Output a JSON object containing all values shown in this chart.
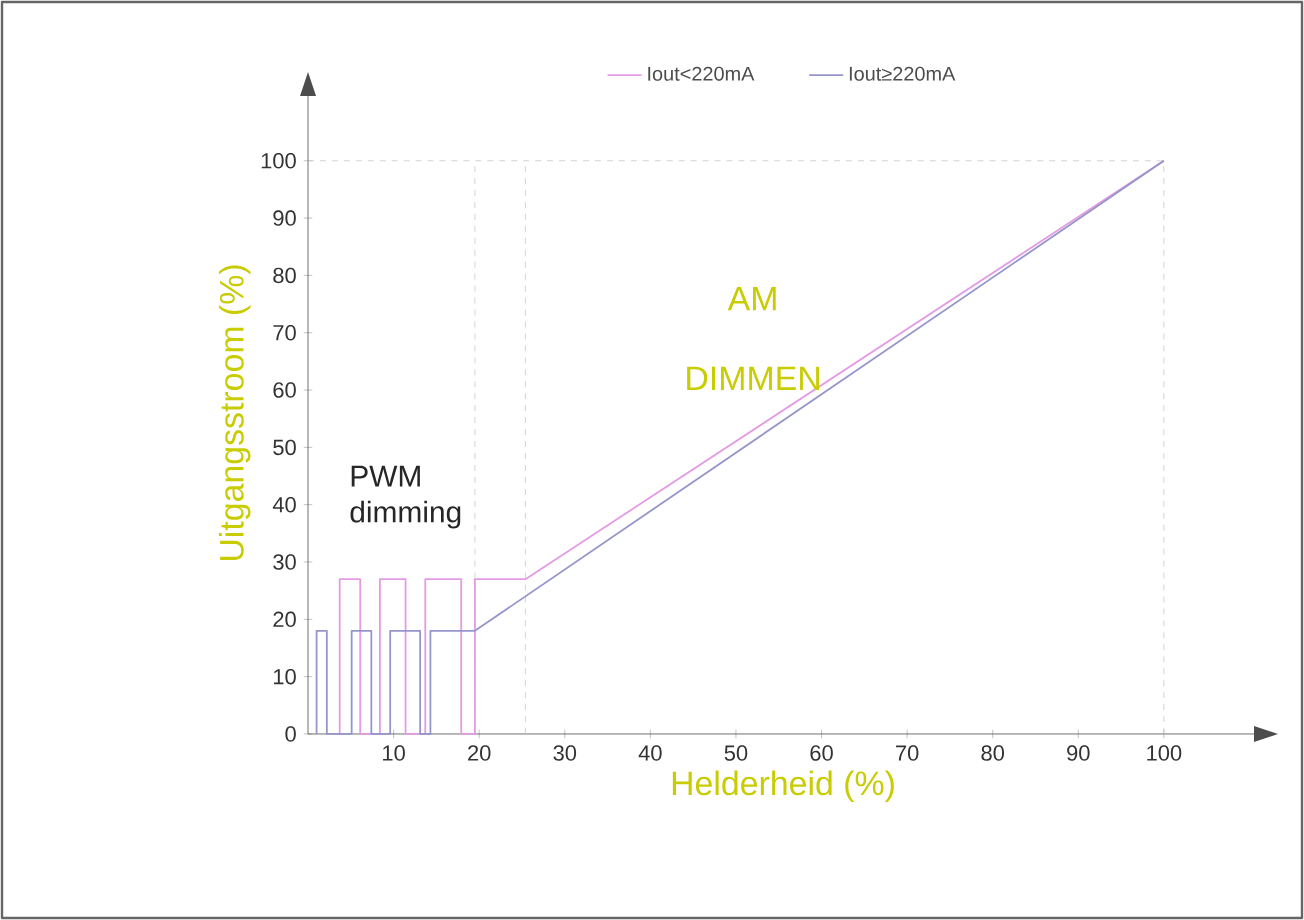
{
  "chart_data": {
    "type": "line",
    "xlabel": "Helderheid (%)",
    "ylabel": "Uitgangsstroom (%)",
    "annotations": [
      "PWM dimming",
      "AM DIMMEN"
    ],
    "xlim": [
      0,
      111
    ],
    "ylim": [
      0,
      112
    ],
    "xticks": [
      10,
      20,
      30,
      40,
      50,
      60,
      70,
      80,
      90,
      100
    ],
    "yticks": [
      0,
      10,
      20,
      30,
      40,
      50,
      60,
      70,
      80,
      90,
      100
    ],
    "legend": "top",
    "grid": false,
    "marker": "none",
    "line_style": "solid",
    "ref_lines": [
      {
        "axis": "x",
        "value": 19.5,
        "color": "#c8c8c8",
        "line_style": "dashed"
      },
      {
        "axis": "x",
        "value": 25.4,
        "color": "#c8c8c8",
        "line_style": "dashed"
      },
      {
        "axis": "x",
        "value": 100,
        "color": "#c8c8c8",
        "line_style": "dashed"
      },
      {
        "axis": "y",
        "value": 100,
        "color": "#c8c8c8",
        "line_style": "dashed"
      }
    ],
    "series": [
      {
        "name": "Iout<220mA",
        "color": "#e49be4",
        "x": [
          3.7,
          3.7,
          6.1,
          6.1,
          8.4,
          8.4,
          11.4,
          11.4,
          13.7,
          13.7,
          17.9,
          17.9,
          19.5,
          19.5,
          25.4,
          100
        ],
        "values": [
          0,
          27,
          27,
          0,
          0,
          27,
          27,
          0,
          0,
          27,
          27,
          0,
          0,
          27,
          27,
          100
        ]
      },
      {
        "name": "Iout≥220mA",
        "color": "#9595cc",
        "x": [
          1.0,
          1.0,
          2.2,
          2.2,
          5.1,
          5.1,
          7.4,
          7.4,
          9.6,
          9.6,
          13.1,
          13.1,
          14.3,
          14.3,
          19.5,
          100
        ],
        "values": [
          0,
          18,
          18,
          0,
          0,
          18,
          18,
          0,
          0,
          18,
          18,
          0,
          0,
          18,
          18,
          100
        ]
      }
    ]
  }
}
